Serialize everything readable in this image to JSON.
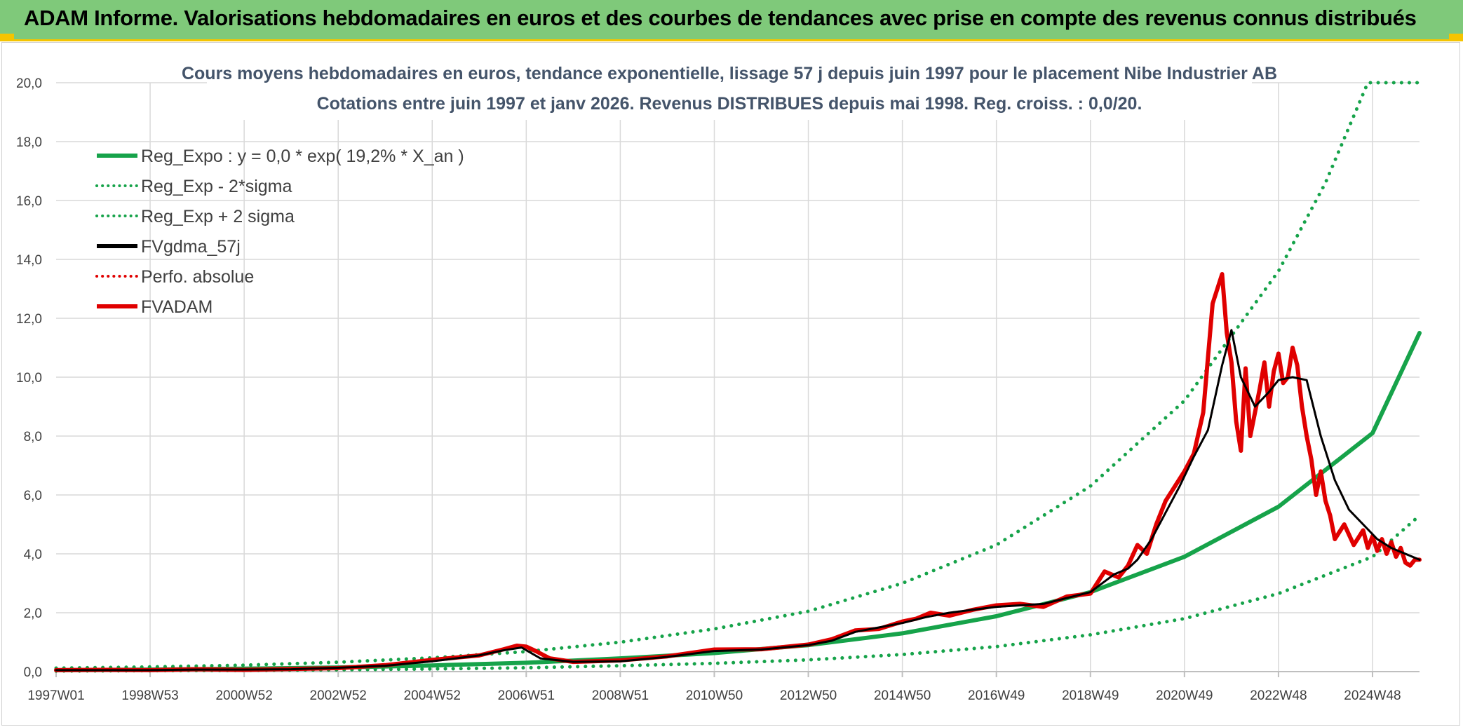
{
  "banner": {
    "title": "ADAM Informe. Valorisations hebdomadaires en euros et des courbes de tendances avec prise en compte des revenus connus distribués",
    "color": "#7fc97a"
  },
  "chart_data": {
    "type": "line",
    "title": "Cours moyens hebdomadaires en euros, tendance exponentielle, lissage 57 j depuis juin 1997 pour le placement Nibe Industrier AB",
    "subtitle": "Cotations entre juin 1997 et janv 2026. Revenus DISTRIBUES depuis mai 1998. Reg. croiss. : 0,0/20.",
    "xlabel": "",
    "ylabel": "",
    "xlim": [
      1997.0,
      2026.0
    ],
    "ylim": [
      0,
      20
    ],
    "grid": true,
    "legend_position": "top-left",
    "y_ticks": [
      "0,0",
      "2,0",
      "4,0",
      "6,0",
      "8,0",
      "10,0",
      "12,0",
      "14,0",
      "16,0",
      "18,0",
      "20,0"
    ],
    "x_ticks": [
      {
        "label": "1997W01",
        "x": 1997.0
      },
      {
        "label": "1998W53",
        "x": 1999.0
      },
      {
        "label": "2000W52",
        "x": 2001.0
      },
      {
        "label": "2002W52",
        "x": 2003.0
      },
      {
        "label": "2004W52",
        "x": 2005.0
      },
      {
        "label": "2006W51",
        "x": 2007.0
      },
      {
        "label": "2008W51",
        "x": 2009.0
      },
      {
        "label": "2010W50",
        "x": 2011.0
      },
      {
        "label": "2012W50",
        "x": 2013.0
      },
      {
        "label": "2014W50",
        "x": 2015.0
      },
      {
        "label": "2016W49",
        "x": 2017.0
      },
      {
        "label": "2018W49",
        "x": 2019.0
      },
      {
        "label": "2020W49",
        "x": 2021.0
      },
      {
        "label": "2022W48",
        "x": 2023.0
      },
      {
        "label": "2024W48",
        "x": 2025.0
      }
    ],
    "series": [
      {
        "name": "Reg_Expo : y = 0,0 * exp( 19,2% *  X_an )",
        "color": "#16a34a",
        "style": "solid",
        "width": 6,
        "x": [
          1997.0,
          1999.0,
          2001.0,
          2003.0,
          2005.0,
          2007.0,
          2009.0,
          2011.0,
          2013.0,
          2015.0,
          2017.0,
          2019.0,
          2021.0,
          2023.0,
          2025.0,
          2026.0
        ],
        "y": [
          0.05,
          0.07,
          0.1,
          0.14,
          0.21,
          0.3,
          0.45,
          0.63,
          0.9,
          1.3,
          1.88,
          2.7,
          3.9,
          5.6,
          8.1,
          11.5
        ]
      },
      {
        "name": "Reg_Exp - 2*sigma",
        "color": "#16a34a",
        "style": "dotted",
        "width": 5,
        "x": [
          1997.0,
          1999.0,
          2001.0,
          2003.0,
          2005.0,
          2007.0,
          2009.0,
          2011.0,
          2013.0,
          2015.0,
          2017.0,
          2019.0,
          2021.0,
          2023.0,
          2025.0,
          2026.0
        ],
        "y": [
          0.02,
          0.03,
          0.04,
          0.06,
          0.09,
          0.13,
          0.2,
          0.28,
          0.4,
          0.58,
          0.85,
          1.25,
          1.8,
          2.65,
          3.9,
          5.3
        ]
      },
      {
        "name": "Reg_Exp + 2 sigma",
        "color": "#16a34a",
        "style": "dotted",
        "width": 5,
        "x": [
          1997.0,
          1999.0,
          2001.0,
          2003.0,
          2005.0,
          2007.0,
          2009.0,
          2011.0,
          2013.0,
          2015.0,
          2017.0,
          2019.0,
          2021.0,
          2023.0,
          2024.0,
          2024.9,
          2026.0
        ],
        "y": [
          0.12,
          0.16,
          0.22,
          0.32,
          0.47,
          0.68,
          1.0,
          1.45,
          2.05,
          3.0,
          4.3,
          6.3,
          9.2,
          13.6,
          16.6,
          20.0,
          20.0
        ]
      },
      {
        "name": "FVgdma_57j",
        "color": "#000000",
        "style": "solid",
        "width": 3,
        "x": [
          1997.0,
          1998.0,
          1999.0,
          2000.0,
          2001.0,
          2002.0,
          2003.0,
          2004.0,
          2005.0,
          2006.0,
          2006.5,
          2006.9,
          2007.3,
          2008.0,
          2009.0,
          2010.0,
          2011.0,
          2012.0,
          2013.0,
          2013.5,
          2014.0,
          2014.5,
          2015.0,
          2015.5,
          2016.0,
          2016.5,
          2017.0,
          2017.5,
          2018.0,
          2018.5,
          2019.0,
          2019.5,
          2019.8,
          2020.0,
          2020.3,
          2020.6,
          2020.9,
          2021.2,
          2021.5,
          2021.8,
          2022.0,
          2022.2,
          2022.5,
          2022.8,
          2023.0,
          2023.3,
          2023.6,
          2023.9,
          2024.2,
          2024.5,
          2024.8,
          2025.1,
          2025.4,
          2025.7,
          2026.0
        ],
        "y": [
          0.05,
          0.05,
          0.05,
          0.07,
          0.07,
          0.08,
          0.13,
          0.2,
          0.35,
          0.55,
          0.72,
          0.82,
          0.45,
          0.33,
          0.35,
          0.5,
          0.7,
          0.75,
          0.9,
          1.05,
          1.35,
          1.5,
          1.65,
          1.85,
          2.0,
          2.1,
          2.2,
          2.25,
          2.3,
          2.5,
          2.7,
          3.3,
          3.5,
          3.8,
          4.5,
          5.4,
          6.3,
          7.3,
          8.2,
          10.4,
          11.6,
          10.0,
          9.0,
          9.5,
          9.9,
          10.0,
          9.9,
          8.0,
          6.5,
          5.5,
          5.0,
          4.5,
          4.2,
          4.0,
          3.8
        ]
      },
      {
        "name": "Perfo. absolue",
        "color": "#e00000",
        "style": "dotted",
        "width": 3,
        "x": [
          1997.0,
          1998.0,
          1999.0,
          2000.0,
          2001.0,
          2002.0,
          2003.0,
          2004.0,
          2005.0,
          2006.0,
          2006.5,
          2006.9,
          2007.3,
          2008.0,
          2009.0,
          2010.0,
          2011.0,
          2012.0,
          2013.0,
          2013.5,
          2014.0,
          2014.5,
          2015.0,
          2015.5,
          2016.0,
          2016.5,
          2017.0,
          2017.5,
          2018.0,
          2018.5,
          2019.0,
          2019.5,
          2019.8,
          2020.0,
          2020.3,
          2020.6,
          2020.9,
          2021.2,
          2021.5,
          2021.8,
          2022.0,
          2022.2,
          2022.5,
          2022.8,
          2023.0,
          2023.3,
          2023.6,
          2023.9,
          2024.2,
          2024.5,
          2024.8,
          2025.1,
          2025.4,
          2025.7,
          2026.0
        ],
        "y": [
          0.05,
          0.05,
          0.05,
          0.07,
          0.07,
          0.08,
          0.13,
          0.2,
          0.35,
          0.55,
          0.72,
          0.82,
          0.45,
          0.33,
          0.35,
          0.5,
          0.7,
          0.75,
          0.9,
          1.05,
          1.35,
          1.5,
          1.65,
          1.85,
          2.0,
          2.1,
          2.2,
          2.25,
          2.3,
          2.5,
          2.7,
          3.3,
          3.5,
          3.8,
          4.5,
          5.4,
          6.3,
          7.3,
          8.2,
          10.4,
          11.6,
          10.0,
          9.0,
          9.5,
          9.9,
          10.0,
          9.9,
          8.0,
          6.5,
          5.5,
          5.0,
          4.5,
          4.2,
          4.0,
          3.8
        ]
      },
      {
        "name": "FVADAM",
        "color": "#e00000",
        "style": "solid",
        "width": 6,
        "x": [
          1997.0,
          1998.0,
          1999.0,
          2000.0,
          2001.0,
          2002.0,
          2003.0,
          2004.0,
          2005.0,
          2006.0,
          2006.5,
          2006.8,
          2007.0,
          2007.2,
          2007.5,
          2008.0,
          2009.0,
          2010.0,
          2011.0,
          2012.0,
          2013.0,
          2013.5,
          2014.0,
          2014.5,
          2015.0,
          2015.3,
          2015.6,
          2016.0,
          2016.5,
          2017.0,
          2017.5,
          2018.0,
          2018.5,
          2019.0,
          2019.3,
          2019.6,
          2019.8,
          2020.0,
          2020.2,
          2020.4,
          2020.6,
          2020.8,
          2021.0,
          2021.2,
          2021.4,
          2021.6,
          2021.8,
          2021.9,
          2022.0,
          2022.1,
          2022.2,
          2022.3,
          2022.4,
          2022.5,
          2022.6,
          2022.7,
          2022.8,
          2022.9,
          2023.0,
          2023.1,
          2023.2,
          2023.3,
          2023.4,
          2023.5,
          2023.6,
          2023.7,
          2023.8,
          2023.9,
          2024.0,
          2024.1,
          2024.2,
          2024.4,
          2024.6,
          2024.8,
          2024.9,
          2025.0,
          2025.1,
          2025.2,
          2025.3,
          2025.4,
          2025.5,
          2025.6,
          2025.7,
          2025.8,
          2025.9,
          2026.0
        ],
        "y": [
          0.05,
          0.06,
          0.05,
          0.08,
          0.06,
          0.09,
          0.12,
          0.22,
          0.4,
          0.55,
          0.75,
          0.88,
          0.85,
          0.7,
          0.45,
          0.33,
          0.38,
          0.52,
          0.75,
          0.76,
          0.92,
          1.1,
          1.4,
          1.45,
          1.7,
          1.8,
          2.0,
          1.9,
          2.1,
          2.25,
          2.3,
          2.2,
          2.55,
          2.65,
          3.4,
          3.2,
          3.6,
          4.3,
          4.0,
          5.0,
          5.8,
          6.3,
          6.8,
          7.4,
          8.8,
          12.5,
          13.5,
          11.5,
          10.5,
          8.5,
          7.5,
          10.3,
          8.0,
          8.8,
          9.6,
          10.5,
          9.0,
          10.2,
          10.8,
          9.8,
          10.0,
          11.0,
          10.4,
          9.0,
          8.0,
          7.2,
          6.0,
          6.8,
          5.8,
          5.3,
          4.5,
          5.0,
          4.3,
          4.8,
          4.2,
          4.6,
          4.1,
          4.5,
          4.0,
          4.4,
          3.9,
          4.2,
          3.7,
          3.6,
          3.8,
          3.8
        ]
      }
    ]
  }
}
